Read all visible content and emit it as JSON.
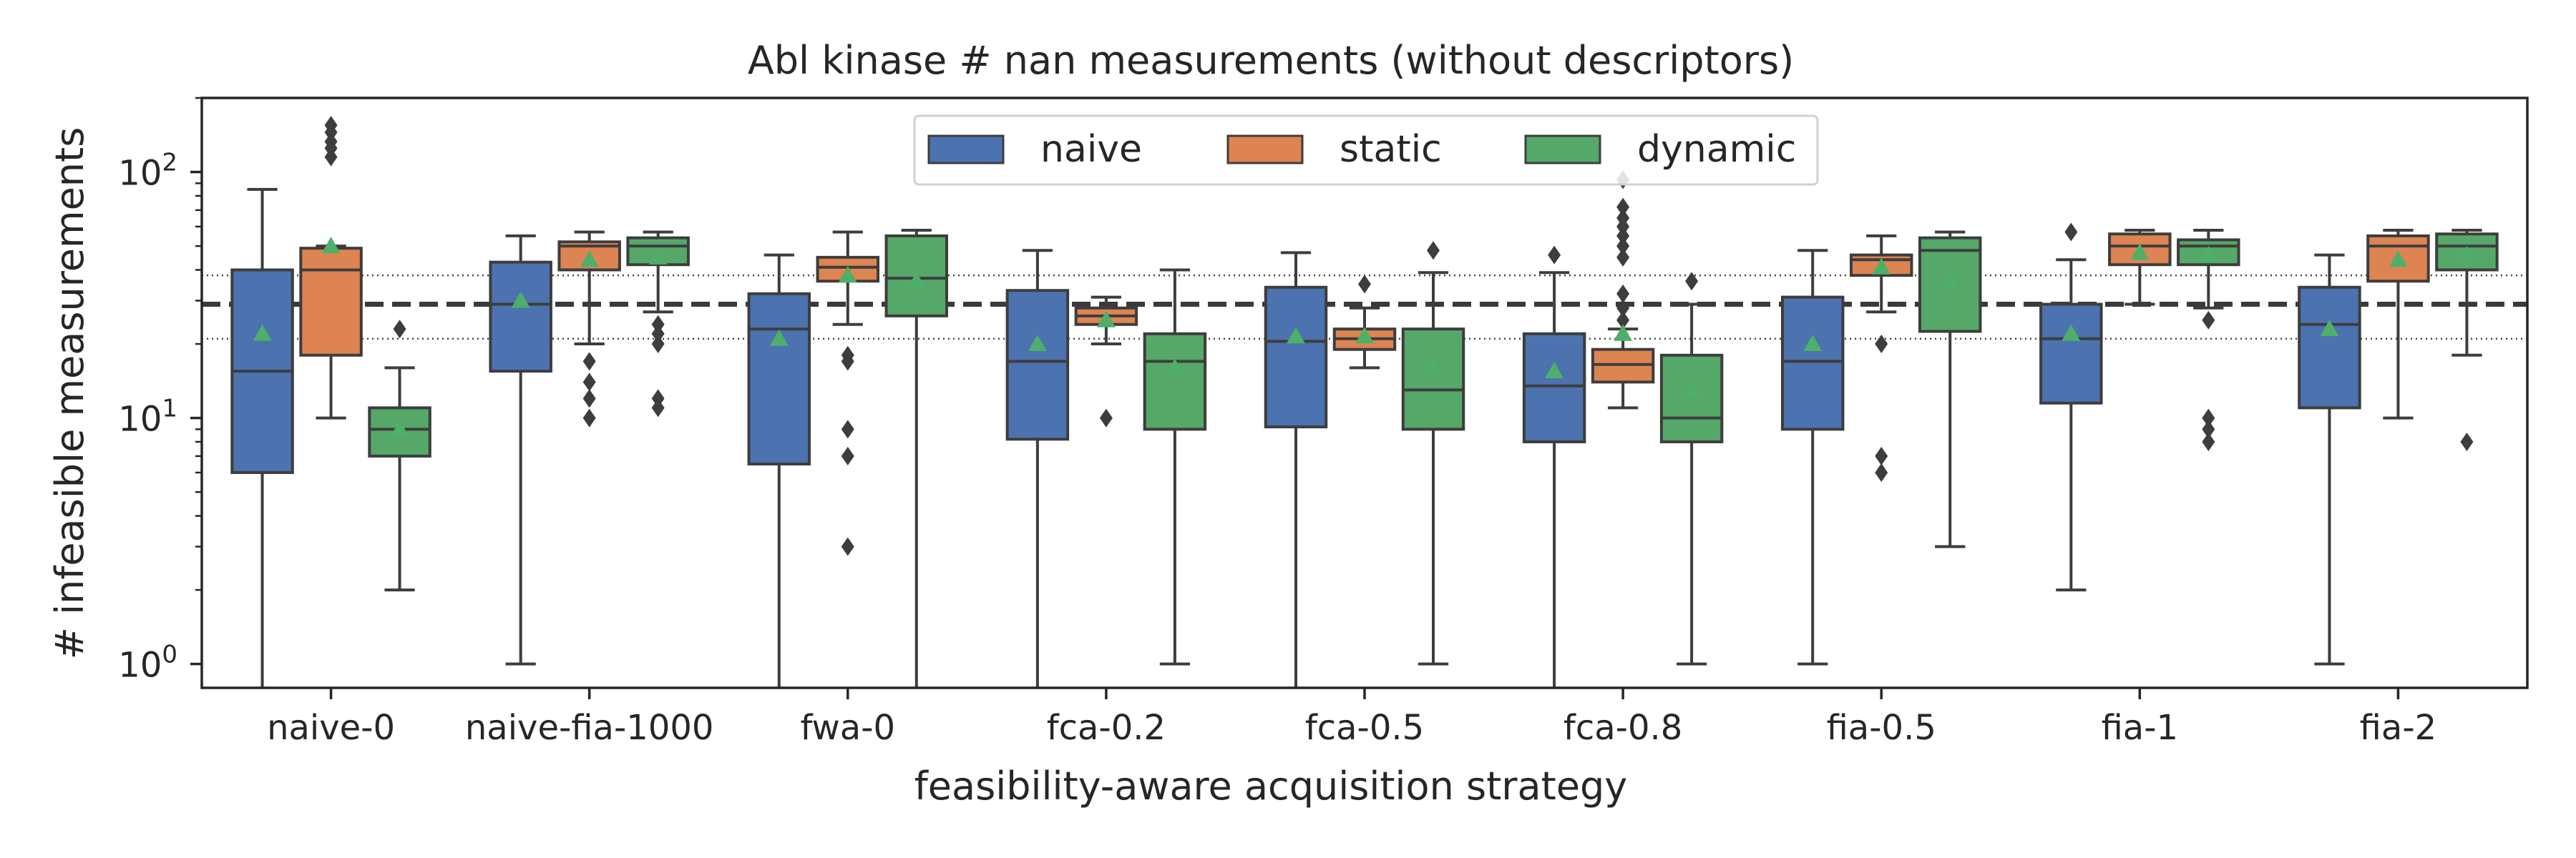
{
  "chart_data": {
    "type": "box",
    "title": "Abl kinase # nan measurements (without descriptors)",
    "xlabel": "feasibility-aware acquisition strategy",
    "ylabel": "# infeasible measurements",
    "yscale": "log",
    "ylim": [
      0.8,
      200
    ],
    "yticks": [
      {
        "value": 1,
        "base": "10",
        "exp": "0"
      },
      {
        "value": 10,
        "base": "10",
        "exp": "1"
      },
      {
        "value": 100,
        "base": "10",
        "exp": "2"
      }
    ],
    "categories": [
      "naive-0",
      "naive-fia-1000",
      "fwa-0",
      "fca-0.2",
      "fca-0.5",
      "fca-0.8",
      "fia-0.5",
      "fia-1",
      "fia-2"
    ],
    "legend": {
      "position": "top-center"
    },
    "reference_lines": {
      "dashed": 29,
      "dotted_upper": 38,
      "dotted_lower": 21
    },
    "series": [
      {
        "name": "naive",
        "color": "#4c72b0",
        "boxes": [
          {
            "wlo": 0.8,
            "q1": 6,
            "median": 15.5,
            "q3": 40,
            "whi": 85,
            "mean": 22,
            "fliers": []
          },
          {
            "wlo": 1,
            "q1": 15.5,
            "median": 29,
            "q3": 43,
            "whi": 55,
            "mean": 30,
            "fliers": []
          },
          {
            "wlo": 0.8,
            "q1": 6.5,
            "median": 23,
            "q3": 32,
            "whi": 46,
            "mean": 21,
            "fliers": []
          },
          {
            "wlo": 0.8,
            "q1": 8.2,
            "median": 17,
            "q3": 33,
            "whi": 48,
            "mean": 20,
            "fliers": []
          },
          {
            "wlo": 0.8,
            "q1": 9.2,
            "median": 20.5,
            "q3": 34,
            "whi": 47,
            "mean": 21.5,
            "fliers": []
          },
          {
            "wlo": 0.8,
            "q1": 8,
            "median": 13.5,
            "q3": 22,
            "whi": 39,
            "mean": 15.5,
            "fliers": [
              46
            ]
          },
          {
            "wlo": 1,
            "q1": 9,
            "median": 17,
            "q3": 31,
            "whi": 48,
            "mean": 20,
            "fliers": []
          },
          {
            "wlo": 2,
            "q1": 11.5,
            "median": 21,
            "q3": 29,
            "whi": 44,
            "mean": 22,
            "fliers": [
              57
            ]
          },
          {
            "wlo": 1,
            "q1": 11,
            "median": 24,
            "q3": 34,
            "whi": 46,
            "mean": 23,
            "fliers": []
          }
        ]
      },
      {
        "name": "static",
        "color": "#dd8452",
        "boxes": [
          {
            "wlo": 10,
            "q1": 18,
            "median": 40,
            "q3": 49,
            "whi": 50,
            "mean": 50,
            "fliers": [
              115,
              125,
              133,
              145,
              155
            ]
          },
          {
            "wlo": 20,
            "q1": 40,
            "median": 50,
            "q3": 52,
            "whi": 57,
            "mean": 44,
            "fliers": [
              10,
              12,
              14,
              17
            ]
          },
          {
            "wlo": 24,
            "q1": 36,
            "median": 41,
            "q3": 45,
            "whi": 57,
            "mean": 38,
            "fliers": [
              3,
              7,
              9,
              17,
              18
            ]
          },
          {
            "wlo": 20,
            "q1": 24,
            "median": 26,
            "q3": 28,
            "whi": 31,
            "mean": 25,
            "fliers": [
              10
            ]
          },
          {
            "wlo": 16,
            "q1": 19,
            "median": 21,
            "q3": 23,
            "whi": 28,
            "mean": 21.5,
            "fliers": [
              35
            ]
          },
          {
            "wlo": 11,
            "q1": 14,
            "median": 16.5,
            "q3": 19,
            "whi": 23,
            "mean": 22,
            "fliers": [
              25,
              28,
              32,
              45,
              50,
              55,
              60,
              65,
              72,
              93
            ]
          },
          {
            "wlo": 27,
            "q1": 38,
            "median": 44,
            "q3": 46,
            "whi": 55,
            "mean": 41,
            "fliers": [
              6,
              7,
              20
            ]
          },
          {
            "wlo": 29,
            "q1": 42,
            "median": 50,
            "q3": 56,
            "whi": 58,
            "mean": 47,
            "fliers": []
          },
          {
            "wlo": 10,
            "q1": 36,
            "median": 50,
            "q3": 55,
            "whi": 58,
            "mean": 44,
            "fliers": []
          }
        ]
      },
      {
        "name": "dynamic",
        "color": "#55a868",
        "boxes": [
          {
            "wlo": 2,
            "q1": 7,
            "median": 9,
            "q3": 11,
            "whi": 16,
            "mean": 9,
            "fliers": [
              23
            ]
          },
          {
            "wlo": 27,
            "q1": 42,
            "median": 50,
            "q3": 54,
            "whi": 57,
            "mean": 45,
            "fliers": [
              11,
              12,
              20,
              22,
              24
            ]
          },
          {
            "wlo": 0.8,
            "q1": 26,
            "median": 37,
            "q3": 55,
            "whi": 58,
            "mean": 36,
            "fliers": []
          },
          {
            "wlo": 1,
            "q1": 9,
            "median": 17,
            "q3": 22,
            "whi": 40,
            "mean": 16,
            "fliers": []
          },
          {
            "wlo": 1,
            "q1": 9,
            "median": 13,
            "q3": 23,
            "whi": 39,
            "mean": 16,
            "fliers": [
              48
            ]
          },
          {
            "wlo": 1,
            "q1": 8,
            "median": 10,
            "q3": 18,
            "whi": 29,
            "mean": 13,
            "fliers": [
              36
            ]
          },
          {
            "wlo": 3,
            "q1": 22.5,
            "median": 48,
            "q3": 54,
            "whi": 57,
            "mean": 36,
            "fliers": []
          },
          {
            "wlo": 28,
            "q1": 42,
            "median": 50,
            "q3": 53,
            "whi": 58,
            "mean": 46,
            "fliers": [
              8,
              9,
              10,
              25
            ]
          },
          {
            "wlo": 18,
            "q1": 40,
            "median": 50,
            "q3": 56,
            "whi": 58,
            "mean": 46,
            "fliers": [
              8
            ]
          }
        ]
      }
    ]
  }
}
